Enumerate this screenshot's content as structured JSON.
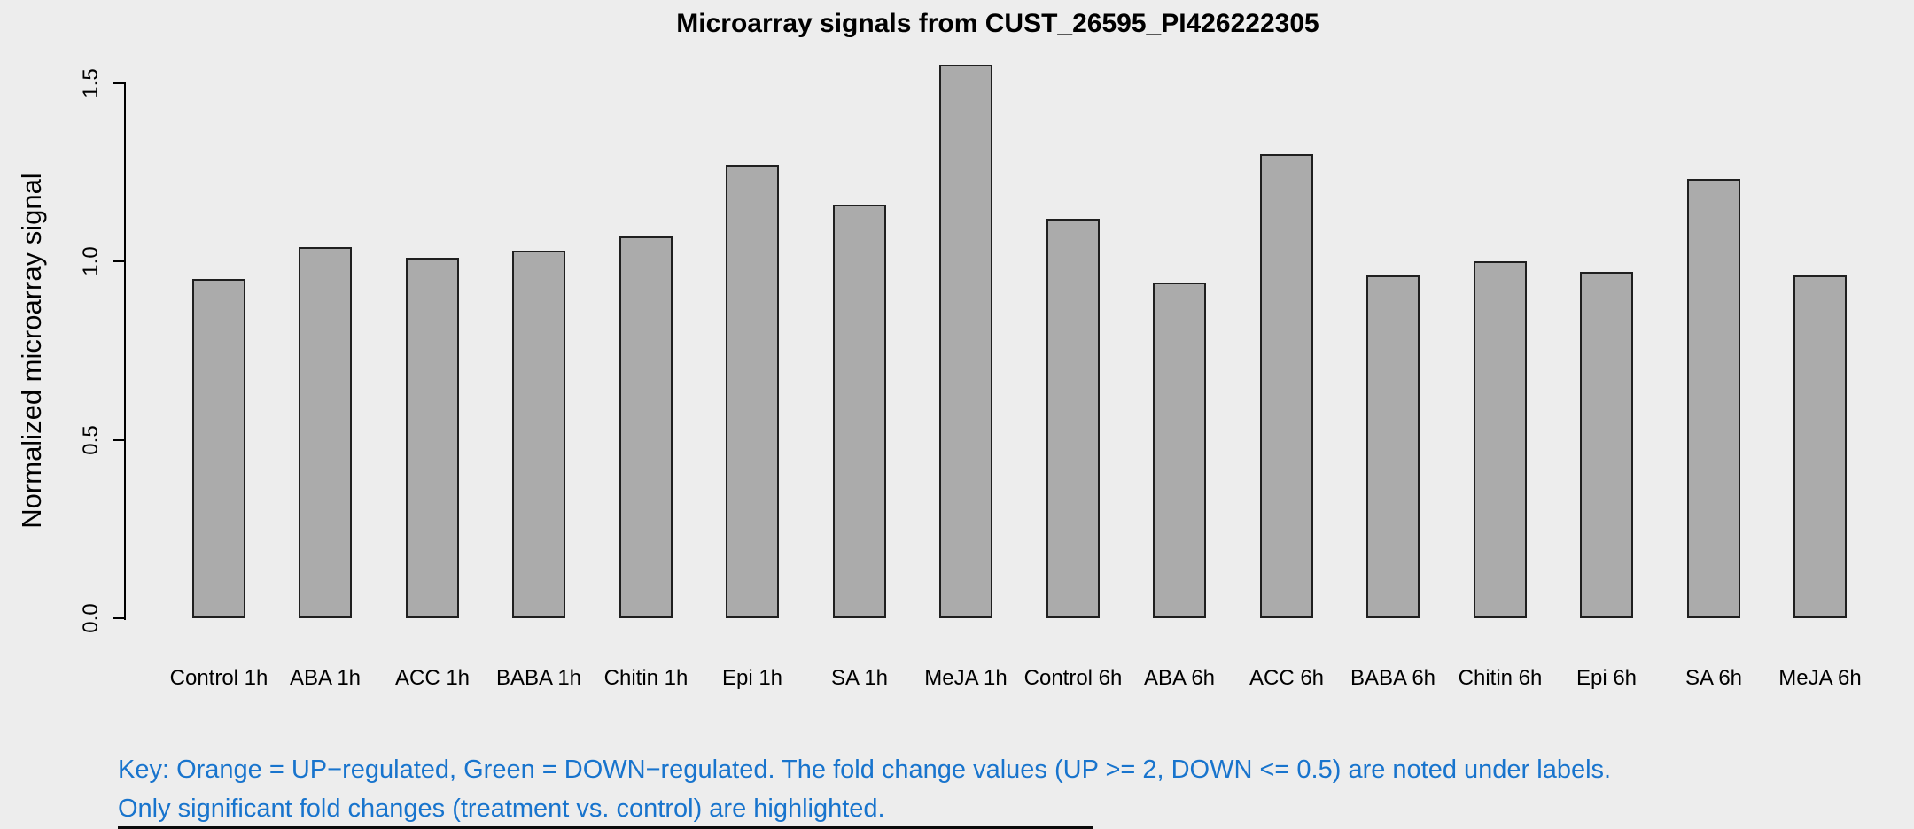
{
  "chart_data": {
    "type": "bar",
    "title": "Microarray signals from CUST_26595_PI426222305",
    "ylabel": "Normalized microarray signal",
    "xlabel": "",
    "categories": [
      "Control 1h",
      "ABA 1h",
      "ACC 1h",
      "BABA 1h",
      "Chitin 1h",
      "Epi 1h",
      "SA 1h",
      "MeJA 1h",
      "Control 6h",
      "ABA 6h",
      "ACC 6h",
      "BABA 6h",
      "Chitin 6h",
      "Epi 6h",
      "SA 6h",
      "MeJA 6h"
    ],
    "values": [
      0.95,
      1.04,
      1.01,
      1.03,
      1.07,
      1.27,
      1.16,
      1.55,
      1.12,
      0.94,
      1.3,
      0.96,
      1.0,
      0.97,
      1.23,
      0.96
    ],
    "yticks": [
      0.0,
      0.5,
      1.0,
      1.5
    ],
    "ylim": [
      0,
      1.55
    ],
    "grid": false,
    "legend": "none",
    "bar_color": "#ABABAB",
    "bar_border_color": "#1f1f1f",
    "background_color": "#EDEDED",
    "axis_color": "#000000"
  },
  "annotations": {
    "key_line1": "Key: Orange = UP−regulated, Green = DOWN−regulated. The fold change values (UP >= 2, DOWN <= 0.5) are noted under labels.",
    "key_line2": "Only significant fold changes (treatment vs. control) are highlighted.",
    "key_color": "#1874CD"
  }
}
